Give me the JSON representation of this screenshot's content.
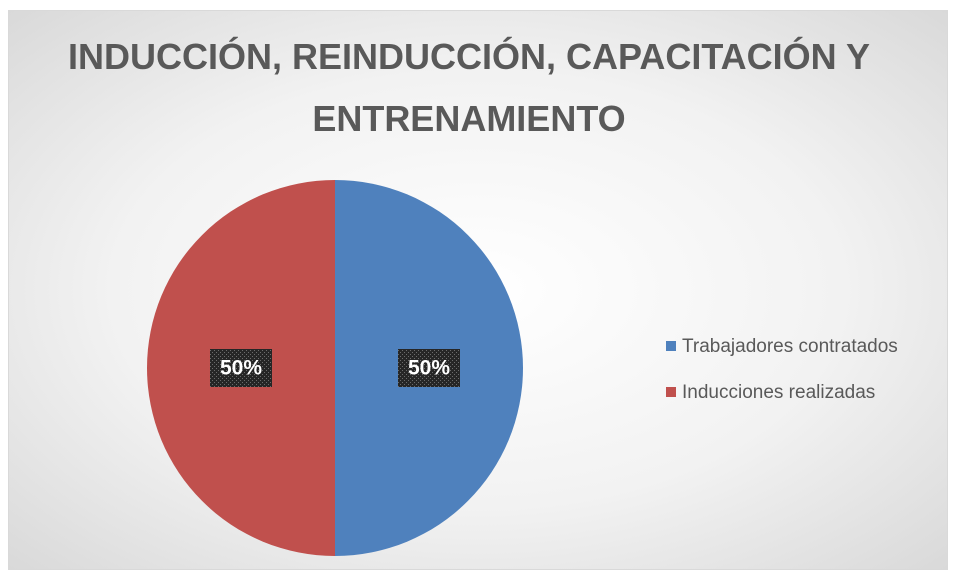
{
  "chart_data": {
    "type": "pie",
    "title": "INDUCCIÓN, REINDUCCIÓN, CAPACITACIÓN Y ENTRENAMIENTO",
    "categories": [
      "Trabajadores contratados",
      "Inducciones realizadas"
    ],
    "values": [
      50,
      50
    ],
    "value_labels": [
      "50%",
      "50%"
    ],
    "colors": [
      "#4f81bd",
      "#c0504d"
    ],
    "legend": "right"
  }
}
